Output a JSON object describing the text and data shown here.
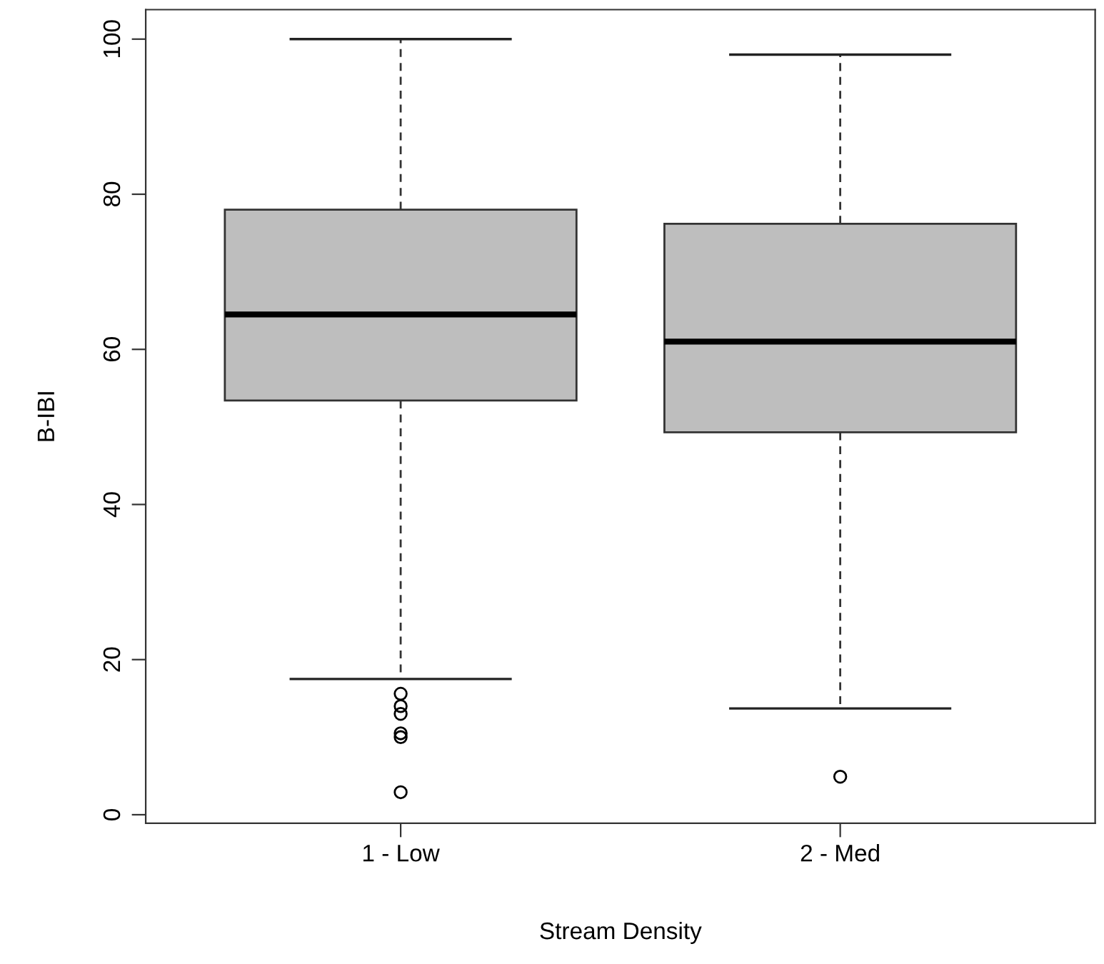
{
  "chart_data": {
    "type": "box",
    "xlabel": "Stream Density",
    "ylabel": "B-IBI",
    "categories": [
      "1 - Low",
      "2 - Med"
    ],
    "boxes": [
      {
        "low": 17.5,
        "q1": 53.4,
        "median": 64.5,
        "q3": 78.0,
        "high": 100,
        "outliers": [
          15.6,
          14,
          13,
          10.5,
          10,
          2.9
        ]
      },
      {
        "low": 13.7,
        "q1": 49.3,
        "median": 61.0,
        "q3": 76.2,
        "high": 98.0,
        "outliers": [
          4.9
        ]
      }
    ],
    "color": "#bebebe",
    "ylim": [
      -1.1,
      103.8
    ],
    "yticks": [
      0,
      20,
      40,
      60,
      80,
      100
    ],
    "grid": false
  }
}
